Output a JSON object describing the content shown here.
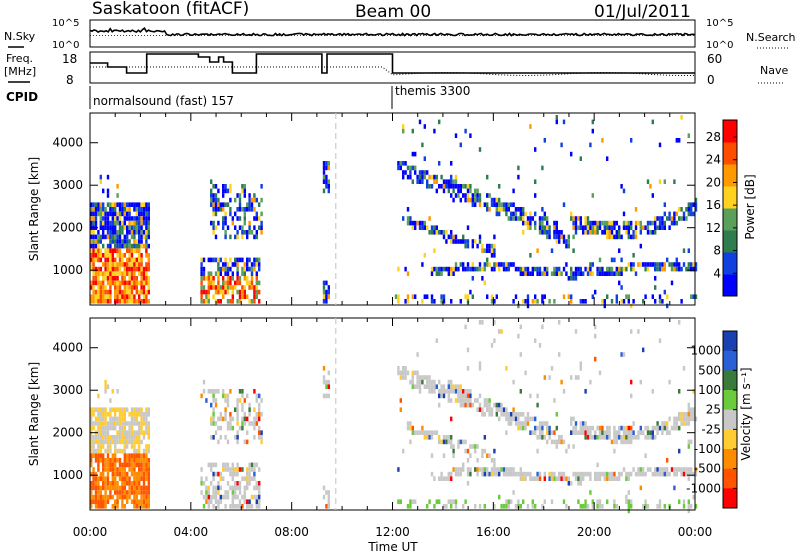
{
  "header": {
    "site": "Saskatoon (fitACF)",
    "beam": "Beam 00",
    "date": "01/Jul/2011"
  },
  "noise_panel": {
    "left_label": "N.Sky",
    "right_label": "N.Search",
    "left_ticks": [
      "10^5",
      "10^0"
    ],
    "right_ticks": [
      "10^5",
      "10^0"
    ]
  },
  "freq_panel": {
    "left_label_1": "Freq.",
    "left_label_2": "[MHz]",
    "right_label": "Nave",
    "left_ticks": [
      "18",
      "8"
    ],
    "right_ticks": [
      "60",
      "0"
    ]
  },
  "cpid_panel": {
    "label": "CPID",
    "segments": [
      "normalsound (fast) 157",
      "themis 3300"
    ]
  },
  "colors": {
    "power_scale": [
      "#0000ff",
      "#1040e0",
      "#2e7d4f",
      "#5aa05a",
      "#ffd21f",
      "#ff9900",
      "#ff4d00",
      "#ff0000"
    ],
    "velocity_scale": [
      "#1a3fb0",
      "#2a5fd6",
      "#3a7a3a",
      "#6acc3a",
      "#c8c8c8",
      "#ffcc33",
      "#ff8c00",
      "#ff5500",
      "#ff0000"
    ]
  },
  "chart_data": [
    {
      "type": "heatmap",
      "ylabel": "Slant Range [km]",
      "x_ticks": [
        "00:00",
        "04:00",
        "08:00",
        "12:00",
        "16:00",
        "20:00",
        "00:00"
      ],
      "y_ticks": [
        "1000",
        "2000",
        "3000",
        "4000"
      ],
      "ylim": [
        180,
        4700
      ],
      "colorbar": {
        "label": "Power [dB]",
        "ticks": [
          "4",
          "8",
          "12",
          "16",
          "20",
          "24",
          "28"
        ],
        "range": [
          0,
          31
        ]
      }
    },
    {
      "type": "heatmap",
      "ylabel": "Slant Range [km]",
      "xlabel": "Time UT",
      "x_ticks": [
        "00:00",
        "04:00",
        "08:00",
        "12:00",
        "16:00",
        "20:00",
        "00:00"
      ],
      "y_ticks": [
        "1000",
        "2000",
        "3000",
        "4000"
      ],
      "ylim": [
        180,
        4700
      ],
      "colorbar": {
        "label": "Velocity [m s⁻¹]",
        "ticks": [
          "1000",
          "500",
          "100",
          "25",
          "-25",
          "-100",
          "-500",
          "-1000"
        ]
      }
    }
  ]
}
